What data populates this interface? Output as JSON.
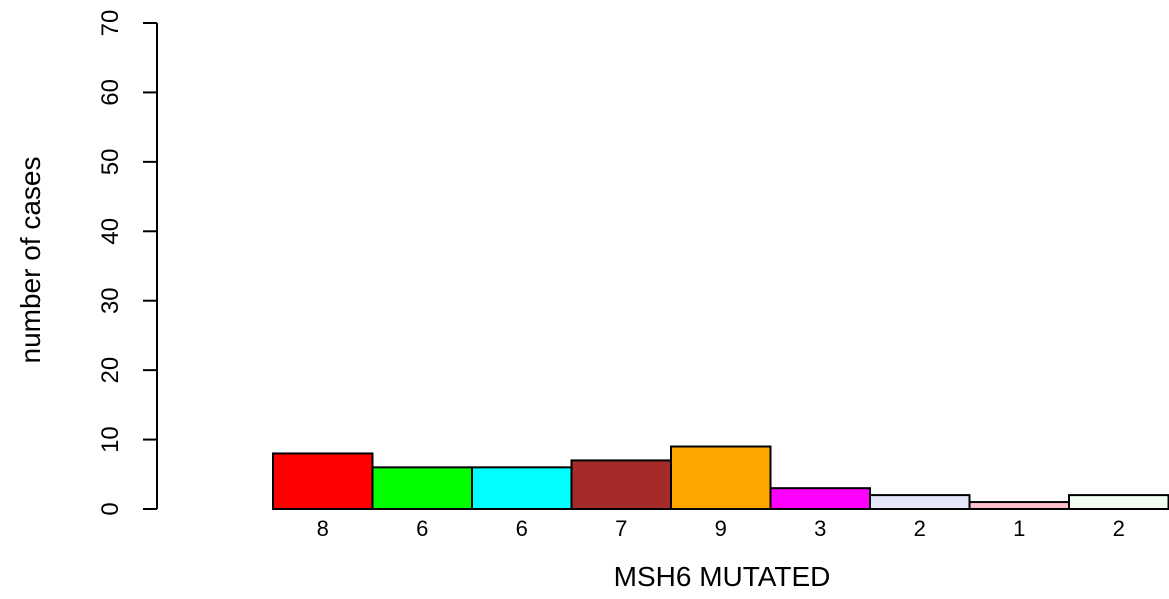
{
  "chart_data": {
    "type": "bar",
    "categories": [
      "8",
      "6",
      "6",
      "7",
      "9",
      "3",
      "2",
      "1",
      "2"
    ],
    "values": [
      8,
      6,
      6,
      7,
      9,
      3,
      2,
      1,
      2
    ],
    "bar_labels": [
      "8",
      "6",
      "6",
      "7",
      "9",
      "3",
      "2",
      "1",
      "2"
    ],
    "colors": [
      "#ff0000",
      "#00ff00",
      "#00ffff",
      "#a52a2a",
      "#ffa500",
      "#ff00ff",
      "#e6e6fa",
      "#ffc0cb",
      "#f0fff0"
    ],
    "title": "",
    "xlabel": "MSH6 MUTATED",
    "ylabel": "number of cases",
    "ylim": [
      0,
      70
    ],
    "yticks": [
      0,
      10,
      20,
      30,
      40,
      50,
      60,
      70
    ],
    "grid": false,
    "legend": "none"
  }
}
